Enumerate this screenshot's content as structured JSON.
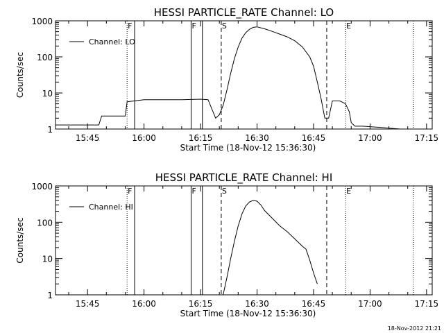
{
  "chart_data": [
    {
      "type": "line",
      "title": "HESSI PARTICLE_RATE Channel: LO",
      "xlabel": "Start Time (18-Nov-12 15:36:30)",
      "ylabel": "Counts/sec",
      "yscale": "log",
      "ylim": [
        1,
        1000
      ],
      "xlim": [
        "15:36:30",
        "17:16:30"
      ],
      "xticks": [
        "15:45",
        "16:00",
        "16:15",
        "16:30",
        "16:45",
        "17:00",
        "17:15"
      ],
      "yticks": [
        "1",
        "10",
        "100",
        "1000"
      ],
      "legend": {
        "label": "Channel: LO",
        "placement": "top-left"
      },
      "grid": false,
      "markers": [
        {
          "time": "15:55:30",
          "style": "dotted",
          "label": "F"
        },
        {
          "time": "15:57:30",
          "style": "solid",
          "label": ""
        },
        {
          "time": "16:12:30",
          "style": "solid",
          "label": "F"
        },
        {
          "time": "16:15:30",
          "style": "solid",
          "label": ""
        },
        {
          "time": "16:20:30",
          "style": "dashed",
          "label": "S"
        },
        {
          "time": "16:48:30",
          "style": "dashed",
          "label": ""
        },
        {
          "time": "16:53:30",
          "style": "dotted",
          "label": "E"
        },
        {
          "time": "17:11:30",
          "style": "dotted",
          "label": ""
        }
      ],
      "series": [
        {
          "name": "Channel: LO",
          "x": [
            "15:36:30",
            "15:48:00",
            "15:48:45",
            "15:55:00",
            "15:55:30",
            "16:00:00",
            "16:10:00",
            "16:15:00",
            "16:17:00",
            "16:19:00",
            "16:20:00",
            "16:21:00",
            "16:22:00",
            "16:23:00",
            "16:24:00",
            "16:25:00",
            "16:26:00",
            "16:27:00",
            "16:28:00",
            "16:29:00",
            "16:30:00",
            "16:32:00",
            "16:34:00",
            "16:36:00",
            "16:38:00",
            "16:40:00",
            "16:42:00",
            "16:44:00",
            "16:45:00",
            "16:46:00",
            "16:47:00",
            "16:48:00",
            "16:49:00",
            "16:50:00",
            "16:52:00",
            "16:53:30",
            "16:54:30",
            "16:55:00",
            "16:56:00",
            "16:58:00",
            "17:03:00",
            "17:08:00",
            "17:11:00"
          ],
          "values": [
            1.3,
            1.3,
            2.3,
            2.3,
            5.7,
            6.5,
            6.5,
            6.7,
            6.5,
            2.0,
            2.5,
            4.5,
            12,
            35,
            90,
            190,
            330,
            470,
            580,
            660,
            680,
            600,
            510,
            430,
            360,
            280,
            190,
            100,
            55,
            20,
            7,
            2,
            2,
            6,
            6,
            5,
            3,
            1.5,
            1.2,
            1.2,
            1.1,
            1.0,
            1.0
          ]
        }
      ]
    },
    {
      "type": "line",
      "title": "HESSI PARTICLE_RATE Channel: HI",
      "xlabel": "Start Time (18-Nov-12 15:36:30)",
      "ylabel": "Counts/sec",
      "yscale": "log",
      "ylim": [
        1,
        1000
      ],
      "xlim": [
        "15:36:30",
        "17:16:30"
      ],
      "xticks": [
        "15:45",
        "16:00",
        "16:15",
        "16:30",
        "16:45",
        "17:00",
        "17:15"
      ],
      "yticks": [
        "1",
        "10",
        "100",
        "1000"
      ],
      "legend": {
        "label": "Channel: HI",
        "placement": "top-left"
      },
      "grid": false,
      "markers": [
        {
          "time": "15:55:30",
          "style": "dotted",
          "label": "F"
        },
        {
          "time": "15:57:30",
          "style": "solid",
          "label": ""
        },
        {
          "time": "16:12:30",
          "style": "solid",
          "label": "F"
        },
        {
          "time": "16:15:30",
          "style": "solid",
          "label": ""
        },
        {
          "time": "16:20:30",
          "style": "dashed",
          "label": "S"
        },
        {
          "time": "16:48:30",
          "style": "dashed",
          "label": ""
        },
        {
          "time": "16:53:30",
          "style": "dotted",
          "label": "E"
        },
        {
          "time": "17:11:30",
          "style": "dotted",
          "label": ""
        }
      ],
      "series": [
        {
          "name": "Channel: HI",
          "x": [
            "16:21:00",
            "16:22:00",
            "16:23:00",
            "16:24:00",
            "16:25:00",
            "16:26:00",
            "16:27:00",
            "16:28:00",
            "16:29:00",
            "16:30:00",
            "16:31:00",
            "16:32:00",
            "16:34:00",
            "16:36:00",
            "16:38:00",
            "16:40:00",
            "16:42:00",
            "16:43:00",
            "16:44:00",
            "16:45:00",
            "16:46:00"
          ],
          "values": [
            1,
            3,
            10,
            30,
            80,
            170,
            280,
            360,
            400,
            380,
            300,
            210,
            130,
            80,
            55,
            35,
            22,
            18,
            9,
            4,
            2
          ]
        }
      ]
    }
  ],
  "footer": {
    "datestamp": "18-Nov-2012 21:21"
  }
}
